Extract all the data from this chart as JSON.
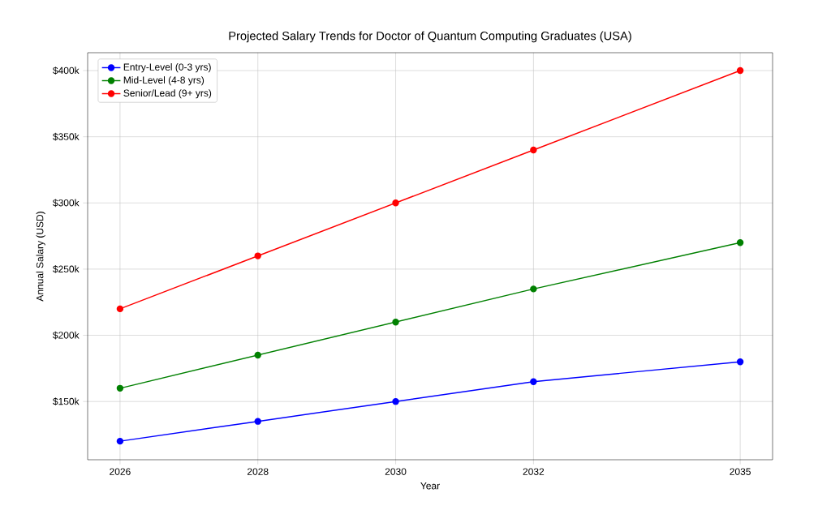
{
  "chart_data": {
    "type": "line",
    "title": "Projected Salary Trends for Doctor of Quantum Computing Graduates (USA)",
    "xlabel": "Year",
    "ylabel": "Annual Salary (USD)",
    "x": [
      2026,
      2028,
      2030,
      2032,
      2035
    ],
    "series": [
      {
        "name": "Entry-Level (0-3 yrs)",
        "color": "#0000ff",
        "values": [
          120000,
          135000,
          150000,
          165000,
          180000
        ]
      },
      {
        "name": "Mid-Level (4-8 yrs)",
        "color": "#008000",
        "values": [
          160000,
          185000,
          210000,
          235000,
          270000
        ]
      },
      {
        "name": "Senior/Lead (9+ yrs)",
        "color": "#ff0000",
        "values": [
          220000,
          260000,
          300000,
          340000,
          400000
        ]
      }
    ],
    "xlim": [
      2025.53,
      2035.47
    ],
    "ylim": [
      106000,
      413500
    ],
    "xticks": [
      2026,
      2028,
      2030,
      2032,
      2035
    ],
    "yticks": [
      {
        "value": 150000,
        "label": "$150k"
      },
      {
        "value": 200000,
        "label": "$200k"
      },
      {
        "value": 250000,
        "label": "$250k"
      },
      {
        "value": 300000,
        "label": "$300k"
      },
      {
        "value": 350000,
        "label": "$350k"
      },
      {
        "value": 400000,
        "label": "$400k"
      }
    ],
    "grid": true,
    "legend": "top left",
    "marker": "circle",
    "line_style": "solid"
  }
}
